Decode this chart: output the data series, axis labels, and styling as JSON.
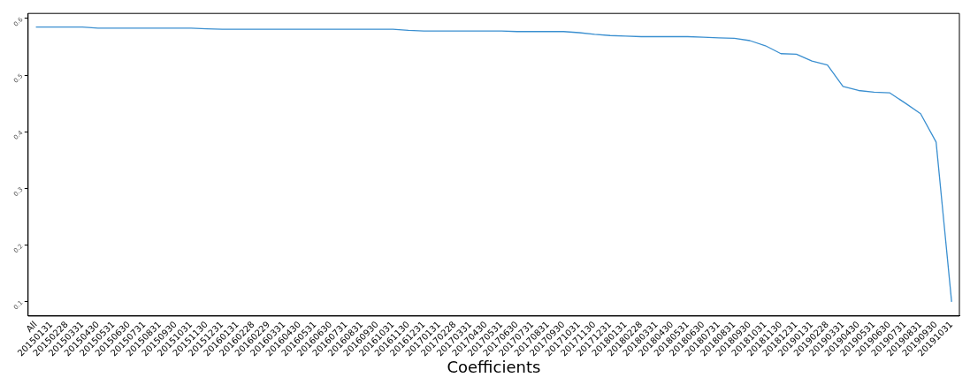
{
  "chart_data": {
    "type": "line",
    "xlabel": "Coefficients",
    "categories": [
      "All",
      "20150131",
      "20150228",
      "20150331",
      "20150430",
      "20150531",
      "20150630",
      "20150731",
      "20150831",
      "20150930",
      "20151031",
      "20151130",
      "20151231",
      "20160131",
      "20160228",
      "20160229",
      "20160331",
      "20160430",
      "20160531",
      "20160630",
      "20160731",
      "20160831",
      "20160930",
      "20161031",
      "20161130",
      "20161231",
      "20170131",
      "20170228",
      "20170331",
      "20170430",
      "20170531",
      "20170630",
      "20170731",
      "20170831",
      "20170930",
      "20171031",
      "20171130",
      "20171231",
      "20180131",
      "20180228",
      "20180331",
      "20180430",
      "20180531",
      "20180630",
      "20180731",
      "20180831",
      "20180930",
      "20181031",
      "20181130",
      "20181231",
      "20190131",
      "20190228",
      "20190331",
      "20190430",
      "20190531",
      "20190630",
      "20190731",
      "20190831",
      "20190930",
      "20191031"
    ],
    "series": [
      {
        "color": "#3a8fd0",
        "values": [
          0.585,
          0.585,
          0.585,
          0.585,
          0.583,
          0.583,
          0.583,
          0.583,
          0.583,
          0.583,
          0.583,
          0.582,
          0.581,
          0.581,
          0.581,
          0.581,
          0.581,
          0.581,
          0.581,
          0.581,
          0.581,
          0.581,
          0.581,
          0.581,
          0.579,
          0.578,
          0.578,
          0.578,
          0.578,
          0.578,
          0.578,
          0.577,
          0.577,
          0.577,
          0.577,
          0.575,
          0.572,
          0.57,
          0.569,
          0.568,
          0.568,
          0.568,
          0.568,
          0.567,
          0.566,
          0.565,
          0.561,
          0.552,
          0.538,
          0.537,
          0.525,
          0.518,
          0.48,
          0.473,
          0.47,
          0.469,
          0.451,
          0.432,
          0.382,
          0.1
        ]
      }
    ],
    "ylim": [
      0.075,
      0.609
    ],
    "yticks": [
      0.1,
      0.2,
      0.3,
      0.4,
      0.5,
      0.6
    ],
    "grid": false,
    "legend": false,
    "marker": "none",
    "line_style": "solid"
  }
}
